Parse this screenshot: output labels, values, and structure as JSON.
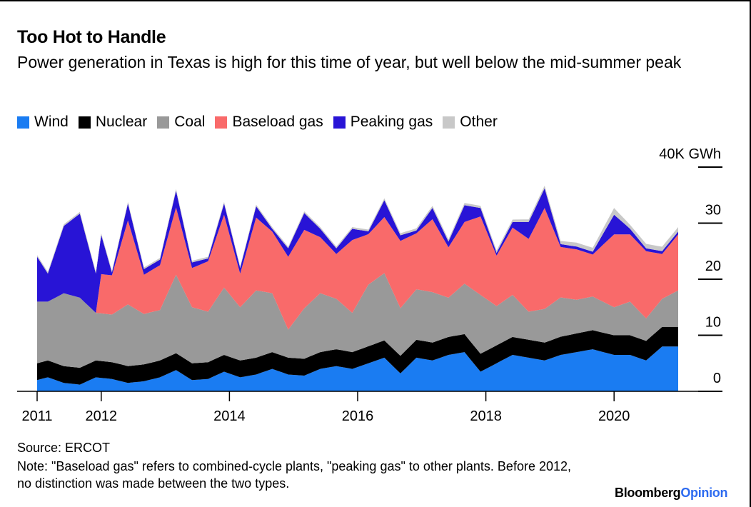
{
  "chart_data": {
    "type": "area",
    "title": "Too Hot to Handle",
    "subtitle": "Power generation in Texas is high for this time of year, but well below the mid-summer peak",
    "ylabel_unit": "40K GWh",
    "ylim": [
      0,
      40
    ],
    "y_ticks": [
      {
        "value": 0,
        "label": "0"
      },
      {
        "value": 10,
        "label": "10"
      },
      {
        "value": 20,
        "label": "20"
      },
      {
        "value": 30,
        "label": "30"
      },
      {
        "value": 40,
        "label": "40K GWh"
      }
    ],
    "x_ticks": [
      "2011",
      "2012",
      "2014",
      "2016",
      "2018",
      "2020"
    ],
    "stacked": true,
    "legend_position": "top-left",
    "series": [
      {
        "name": "Wind",
        "color": "#1a7cf2",
        "anchor_months": [
          0,
          2,
          5,
          8,
          11,
          14,
          17,
          20,
          23,
          26,
          29,
          32,
          35,
          38,
          41,
          44,
          47,
          50,
          53,
          56,
          59,
          62,
          65,
          68,
          71,
          74,
          77,
          80,
          83,
          86,
          89,
          92,
          95,
          98,
          101,
          104,
          108,
          111,
          114,
          117,
          120
        ],
        "anchor_values": [
          2,
          2.5,
          1.5,
          1.2,
          2.5,
          2.2,
          1.5,
          1.8,
          2.5,
          3.8,
          2,
          2.2,
          3.5,
          2.5,
          3,
          4,
          3,
          2.8,
          4,
          4.5,
          4,
          5,
          6,
          3.2,
          6,
          5.5,
          6.5,
          7,
          3.5,
          5,
          6.5,
          6,
          5.5,
          6.5,
          7,
          7.5,
          6.5,
          6.5,
          5.5,
          8,
          8
        ]
      },
      {
        "name": "Nuclear",
        "color": "#000000",
        "anchor_months": [
          0,
          12,
          24,
          36,
          48,
          60,
          72,
          84,
          96,
          108,
          120
        ],
        "anchor_values": [
          3,
          3,
          3,
          3,
          3,
          3,
          3.2,
          3.2,
          3.2,
          3.5,
          3.5
        ]
      },
      {
        "name": "Coal",
        "color": "#999999",
        "anchor_months": [
          0,
          2,
          5,
          8,
          11,
          14,
          17,
          20,
          23,
          26,
          29,
          32,
          35,
          38,
          41,
          44,
          47,
          50,
          53,
          56,
          59,
          62,
          65,
          68,
          71,
          74,
          77,
          80,
          83,
          86,
          89,
          92,
          95,
          98,
          101,
          104,
          108,
          111,
          114,
          117,
          120
        ],
        "anchor_values": [
          11,
          10.5,
          13,
          12.5,
          8.5,
          8.5,
          11,
          9,
          9,
          14,
          10,
          9,
          12,
          9.5,
          12,
          10.5,
          5,
          9,
          10.5,
          9,
          7,
          11,
          12,
          8.5,
          9,
          9,
          7,
          9,
          10.5,
          7,
          7.5,
          5,
          6,
          7,
          6,
          6,
          5,
          6,
          4,
          5,
          6.5
        ]
      },
      {
        "name": "Baseload gas",
        "color": "#f96a6a",
        "anchor_months": [
          12,
          14,
          17,
          20,
          23,
          26,
          29,
          32,
          35,
          38,
          41,
          44,
          47,
          50,
          53,
          56,
          59,
          62,
          65,
          68,
          71,
          74,
          77,
          80,
          83,
          86,
          89,
          92,
          95,
          98,
          101,
          104,
          108,
          111,
          114,
          117,
          120
        ],
        "anchor_values": [
          7,
          7,
          15,
          7,
          8,
          12,
          7,
          9,
          13,
          6,
          13,
          11,
          13,
          14,
          10,
          8,
          13,
          9,
          10,
          12,
          10,
          13,
          9,
          11,
          14,
          9,
          12,
          13,
          18,
          9,
          9,
          7.5,
          13,
          12,
          12,
          8,
          10
        ]
      },
      {
        "name": "Peaking gas",
        "color": "#2814d6",
        "anchor_months": [
          0,
          2,
          5,
          8,
          11,
          12,
          14,
          17,
          20,
          23,
          26,
          29,
          32,
          35,
          38,
          41,
          44,
          47,
          50,
          53,
          56,
          59,
          62,
          65,
          68,
          71,
          74,
          77,
          80,
          83,
          86,
          89,
          92,
          95,
          98,
          101,
          104,
          108,
          111,
          114,
          117,
          120
        ],
        "anchor_values": [
          8,
          5,
          12,
          15,
          7,
          7,
          0.5,
          3,
          1,
          1,
          3,
          1,
          0.5,
          2,
          1,
          2,
          0.5,
          1.5,
          3,
          1.5,
          1,
          2,
          0.5,
          3,
          1,
          0.5,
          2,
          1,
          3,
          1.5,
          0.5,
          1,
          3,
          3.5,
          0.5,
          0.5,
          0.5,
          3.5,
          1,
          0.5,
          0.5,
          0.5
        ]
      },
      {
        "name": "Other",
        "color": "#c8c8c8",
        "anchor_months": [
          0,
          12,
          24,
          36,
          48,
          60,
          72,
          84,
          96,
          101,
          104,
          108,
          111,
          114,
          117,
          120
        ],
        "anchor_values": [
          0.3,
          0.3,
          0.3,
          0.3,
          0.3,
          0.3,
          0.4,
          0.4,
          0.5,
          0.7,
          0.7,
          1.2,
          0.7,
          0.8,
          0.8,
          0.8
        ]
      }
    ]
  },
  "footer": {
    "source": "Source: ERCOT",
    "note": "Note: \"Baseload gas\" refers to combined-cycle plants, \"peaking gas\" to other plants. Before 2012, no distinction was made between the two types.",
    "brand_part1": "Bloomberg",
    "brand_part2": "Opinion"
  }
}
